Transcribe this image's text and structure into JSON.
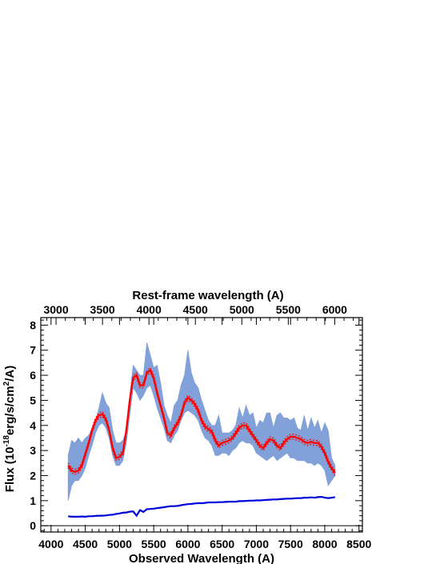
{
  "chart_data": {
    "type": "line",
    "xlabel": "Observed Wavelength (A)",
    "x2label": "Rest-frame wavelength (A)",
    "ylabel_main": "Flux (10",
    "ylabel_exp1": "-18",
    "ylabel_mid": "erg/s/cm",
    "ylabel_exp2": "2",
    "ylabel_end": "/A)",
    "xlim": [
      3850,
      8550
    ],
    "ylim": [
      -0.25,
      8.3
    ],
    "x_ticks": [
      4000,
      4500,
      5000,
      5500,
      6000,
      6500,
      7000,
      7500,
      8000,
      8500
    ],
    "x_tick_labels": [
      "4000",
      "4500",
      "5000",
      "5500",
      "6000",
      "6500",
      "7000",
      "7500",
      "8000",
      "8500"
    ],
    "x2_ticks": [
      3000,
      3500,
      4000,
      4500,
      5000,
      5500,
      6000
    ],
    "x2_tick_labels": [
      "3000",
      "3500",
      "4000",
      "4500",
      "5000",
      "5500",
      "6000"
    ],
    "y_ticks": [
      0,
      1,
      2,
      3,
      4,
      5,
      6,
      7,
      8
    ],
    "y_tick_labels": [
      "0",
      "1",
      "2",
      "3",
      "4",
      "5",
      "6",
      "7",
      "8"
    ],
    "zero_line": 0,
    "series": [
      {
        "kind": "observed-spectrum",
        "color": "#7b9dd6",
        "x": [
          4250,
          4300,
          4350,
          4400,
          4450,
          4500,
          4550,
          4600,
          4650,
          4700,
          4750,
          4800,
          4850,
          4900,
          4950,
          5000,
          5050,
          5100,
          5150,
          5200,
          5250,
          5300,
          5350,
          5400,
          5450,
          5500,
          5550,
          5600,
          5650,
          5700,
          5750,
          5800,
          5850,
          5900,
          5950,
          6000,
          6050,
          6100,
          6150,
          6200,
          6250,
          6300,
          6350,
          6400,
          6450,
          6500,
          6550,
          6600,
          6650,
          6700,
          6750,
          6800,
          6850,
          6900,
          6950,
          7000,
          7050,
          7100,
          7150,
          7200,
          7250,
          7300,
          7350,
          7400,
          7450,
          7500,
          7550,
          7600,
          7650,
          7700,
          7750,
          7800,
          7850,
          7900,
          7950,
          8000,
          8050,
          8100,
          8150
        ],
        "y_low": [
          1.0,
          1.6,
          1.8,
          1.8,
          2.0,
          2.3,
          2.8,
          3.2,
          3.7,
          4.0,
          4.1,
          3.9,
          3.5,
          2.8,
          2.4,
          2.4,
          2.6,
          3.3,
          4.4,
          5.5,
          5.3,
          5.0,
          5.2,
          5.5,
          5.6,
          5.2,
          4.7,
          4.3,
          3.9,
          3.4,
          3.3,
          3.6,
          3.8,
          4.2,
          4.5,
          4.6,
          4.5,
          4.4,
          4.2,
          3.8,
          3.5,
          3.4,
          3.2,
          2.8,
          2.8,
          2.9,
          2.9,
          2.8,
          3.0,
          3.1,
          3.3,
          3.4,
          3.3,
          3.3,
          3.2,
          2.9,
          2.8,
          2.7,
          2.6,
          2.7,
          2.8,
          2.6,
          2.7,
          2.8,
          2.9,
          2.7,
          2.7,
          2.6,
          2.6,
          2.6,
          2.5,
          2.5,
          2.4,
          2.5,
          2.4,
          2.2,
          1.6,
          1.8,
          2.0
        ],
        "y_high": [
          2.8,
          3.4,
          3.3,
          3.5,
          3.3,
          3.5,
          3.6,
          3.9,
          4.2,
          4.7,
          5.3,
          4.9,
          4.7,
          3.8,
          3.3,
          3.3,
          3.4,
          3.8,
          5.2,
          6.4,
          6.2,
          6.0,
          6.0,
          7.3,
          6.8,
          6.3,
          6.4,
          5.7,
          4.8,
          4.4,
          4.1,
          4.8,
          5.0,
          5.6,
          6.0,
          7.0,
          6.1,
          5.7,
          5.5,
          5.0,
          4.6,
          4.2,
          4.0,
          4.0,
          4.4,
          3.7,
          3.7,
          3.7,
          3.8,
          4.0,
          4.7,
          4.3,
          4.8,
          4.4,
          4.5,
          3.9,
          4.2,
          4.1,
          4.5,
          4.5,
          3.9,
          4.4,
          4.5,
          4.3,
          4.3,
          4.2,
          4.3,
          3.9,
          3.8,
          4.4,
          3.8,
          4.3,
          3.9,
          4.2,
          3.7,
          4.1,
          3.8,
          2.7,
          2.4
        ]
      },
      {
        "kind": "model-fit",
        "color": "#ff0000",
        "x": [
          4250,
          4300,
          4350,
          4400,
          4450,
          4500,
          4550,
          4600,
          4650,
          4700,
          4750,
          4800,
          4850,
          4900,
          4950,
          5000,
          5050,
          5100,
          5150,
          5200,
          5250,
          5300,
          5350,
          5400,
          5450,
          5500,
          5550,
          5600,
          5650,
          5700,
          5750,
          5800,
          5850,
          5900,
          5950,
          6000,
          6050,
          6100,
          6150,
          6200,
          6250,
          6300,
          6350,
          6400,
          6450,
          6500,
          6550,
          6600,
          6650,
          6700,
          6750,
          6800,
          6850,
          6900,
          6950,
          7000,
          7050,
          7100,
          7150,
          7200,
          7250,
          7300,
          7350,
          7400,
          7450,
          7500,
          7550,
          7600,
          7650,
          7700,
          7750,
          7800,
          7850,
          7900,
          7950,
          8000,
          8050,
          8100,
          8150
        ],
        "y": [
          2.4,
          2.2,
          2.15,
          2.2,
          2.4,
          2.85,
          3.3,
          3.8,
          4.2,
          4.4,
          4.45,
          4.25,
          3.8,
          3.1,
          2.7,
          2.75,
          2.9,
          3.8,
          5.0,
          5.9,
          6.0,
          5.6,
          5.6,
          6.1,
          6.2,
          5.9,
          5.3,
          4.8,
          4.3,
          3.7,
          3.6,
          3.9,
          4.1,
          4.4,
          4.9,
          5.1,
          5.0,
          4.85,
          4.6,
          4.2,
          3.95,
          3.85,
          3.75,
          3.4,
          3.2,
          3.3,
          3.35,
          3.4,
          3.5,
          3.7,
          3.9,
          4.0,
          4.0,
          3.8,
          3.6,
          3.4,
          3.2,
          3.1,
          3.3,
          3.45,
          3.4,
          3.2,
          3.1,
          3.3,
          3.45,
          3.55,
          3.55,
          3.5,
          3.45,
          3.35,
          3.3,
          3.35,
          3.3,
          3.3,
          3.15,
          2.9,
          2.55,
          2.3,
          2.1
        ]
      },
      {
        "kind": "error-spectrum",
        "color": "#0000dd",
        "x": [
          4250,
          4300,
          4350,
          4400,
          4450,
          4500,
          4550,
          4600,
          4650,
          4700,
          4750,
          4800,
          4850,
          4900,
          4950,
          5000,
          5050,
          5100,
          5150,
          5200,
          5250,
          5300,
          5350,
          5400,
          5450,
          5500,
          5550,
          5600,
          5650,
          5700,
          5750,
          5800,
          5850,
          5900,
          5950,
          6000,
          6050,
          6100,
          6150,
          6200,
          6250,
          6300,
          6350,
          6400,
          6450,
          6500,
          6550,
          6600,
          6650,
          6700,
          6750,
          6800,
          6850,
          6900,
          6950,
          7000,
          7050,
          7100,
          7150,
          7200,
          7250,
          7300,
          7350,
          7400,
          7450,
          7500,
          7550,
          7600,
          7650,
          7700,
          7750,
          7800,
          7850,
          7900,
          7950,
          8000,
          8050,
          8100,
          8150
        ],
        "y": [
          0.38,
          0.36,
          0.36,
          0.36,
          0.37,
          0.36,
          0.38,
          0.38,
          0.39,
          0.4,
          0.4,
          0.41,
          0.43,
          0.44,
          0.47,
          0.49,
          0.52,
          0.53,
          0.56,
          0.57,
          0.4,
          0.62,
          0.55,
          0.66,
          0.67,
          0.68,
          0.7,
          0.72,
          0.74,
          0.76,
          0.78,
          0.78,
          0.79,
          0.82,
          0.84,
          0.86,
          0.87,
          0.89,
          0.9,
          0.9,
          0.91,
          0.93,
          0.93,
          0.93,
          0.94,
          0.94,
          0.95,
          0.96,
          0.96,
          0.96,
          0.98,
          0.98,
          0.99,
          1.0,
          1.0,
          1.01,
          1.01,
          1.02,
          1.03,
          1.04,
          1.05,
          1.05,
          1.06,
          1.07,
          1.08,
          1.08,
          1.09,
          1.1,
          1.1,
          1.12,
          1.12,
          1.13,
          1.12,
          1.14,
          1.15,
          1.12,
          1.1,
          1.12,
          1.14
        ]
      }
    ]
  }
}
